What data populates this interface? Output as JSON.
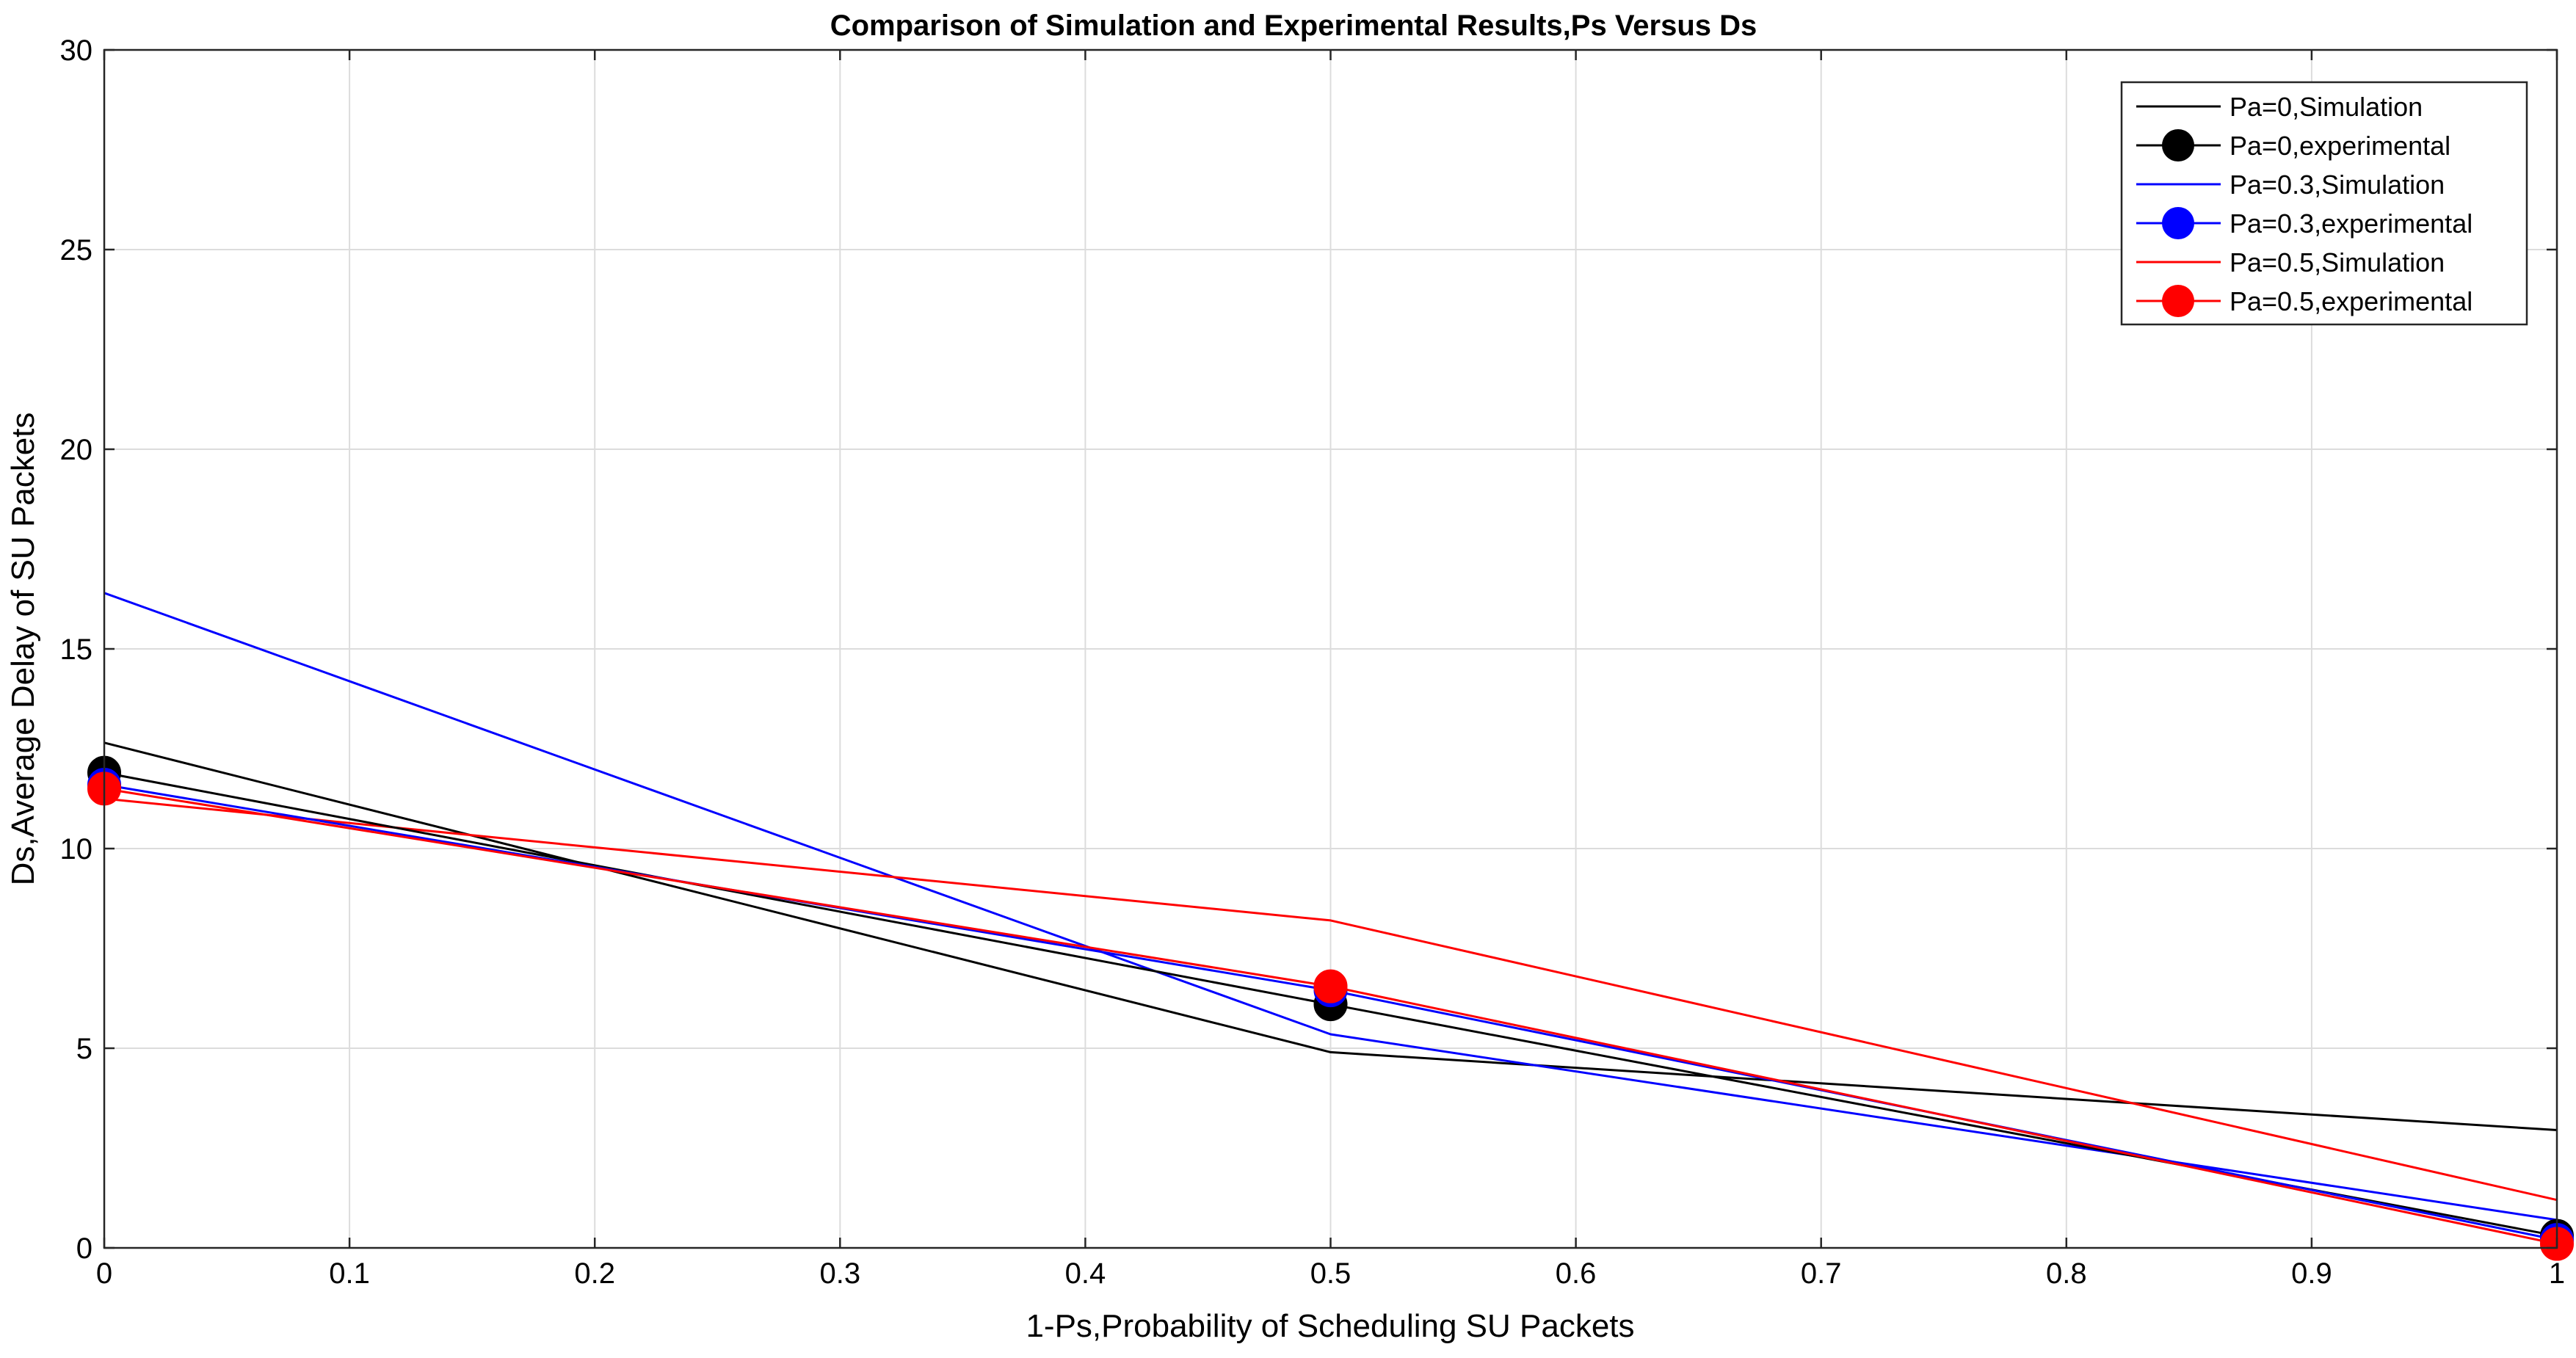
{
  "chart_data": {
    "type": "line",
    "title": "Comparison of Simulation and Experimental Results,Ps Versus Ds",
    "xlabel": "1-Ps,Probability of Scheduling SU Packets",
    "ylabel": "Ds,Average Delay of SU Packets",
    "xlim": [
      0,
      1
    ],
    "ylim": [
      0,
      30
    ],
    "xticks": [
      "0",
      "0.1",
      "0.2",
      "0.3",
      "0.4",
      "0.5",
      "0.6",
      "0.7",
      "0.8",
      "0.9",
      "1"
    ],
    "yticks": [
      "0",
      "5",
      "10",
      "15",
      "20",
      "25",
      "30"
    ],
    "grid": true,
    "legend_position": "top-right",
    "series": [
      {
        "name": "Pa=0,Simulation",
        "style": "line",
        "color": "#000000",
        "x": [
          0,
          0.5,
          1
        ],
        "y": [
          12.65,
          4.9,
          2.95
        ]
      },
      {
        "name": "Pa=0,experimental",
        "style": "line-marker",
        "color": "#000000",
        "x": [
          0,
          0.5,
          1
        ],
        "y": [
          11.9,
          6.1,
          0.3
        ]
      },
      {
        "name": "Pa=0.3,Simulation",
        "style": "line",
        "color": "#0000ff",
        "x": [
          0,
          0.5,
          1
        ],
        "y": [
          16.4,
          5.35,
          0.7
        ]
      },
      {
        "name": "Pa=0.3,experimental",
        "style": "line-marker",
        "color": "#0000ff",
        "x": [
          0,
          0.5,
          1
        ],
        "y": [
          11.6,
          6.45,
          0.2
        ]
      },
      {
        "name": "Pa=0.5,Simulation",
        "style": "line",
        "color": "#ff0000",
        "x": [
          0,
          0.5,
          1
        ],
        "y": [
          11.25,
          8.2,
          1.2
        ]
      },
      {
        "name": "Pa=0.5,experimental",
        "style": "line-marker",
        "color": "#ff0000",
        "x": [
          0,
          0.5,
          1
        ],
        "y": [
          11.5,
          6.55,
          0.1
        ]
      }
    ]
  }
}
